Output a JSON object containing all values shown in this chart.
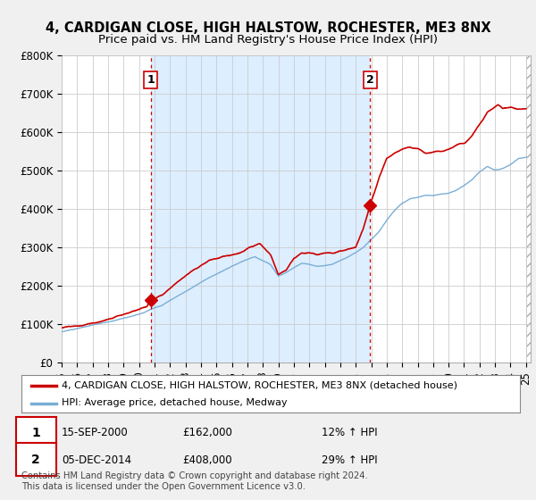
{
  "title": "4, CARDIGAN CLOSE, HIGH HALSTOW, ROCHESTER, ME3 8NX",
  "subtitle": "Price paid vs. HM Land Registry's House Price Index (HPI)",
  "ylim": [
    0,
    800000
  ],
  "yticks": [
    0,
    100000,
    200000,
    300000,
    400000,
    500000,
    600000,
    700000,
    800000
  ],
  "ytick_labels": [
    "£0",
    "£100K",
    "£200K",
    "£300K",
    "£400K",
    "£500K",
    "£600K",
    "£700K",
    "£800K"
  ],
  "x_start_year": 1995,
  "x_end_year": 2025,
  "sale1_year": 2000.75,
  "sale1_price": 162000,
  "sale2_year": 2014.92,
  "sale2_price": 408000,
  "sale1_date": "15-SEP-2000",
  "sale1_amount": "£162,000",
  "sale1_hpi": "12% ↑ HPI",
  "sale2_date": "05-DEC-2014",
  "sale2_amount": "£408,000",
  "sale2_hpi": "29% ↑ HPI",
  "property_line_color": "#cc0000",
  "hpi_line_color": "#7aaed6",
  "sale_marker_color": "#cc0000",
  "background_color": "#f0f0f0",
  "plot_bg_color": "#ffffff",
  "shaded_bg_color": "#ddeeff",
  "grid_color": "#cccccc",
  "legend_label_property": "4, CARDIGAN CLOSE, HIGH HALSTOW, ROCHESTER, ME3 8NX (detached house)",
  "legend_label_hpi": "HPI: Average price, detached house, Medway",
  "footer_text": "Contains HM Land Registry data © Crown copyright and database right 2024.\nThis data is licensed under the Open Government Licence v3.0.",
  "vline_color": "#cc0000",
  "title_fontsize": 10.5,
  "subtitle_fontsize": 9.5,
  "tick_fontsize": 8.5
}
